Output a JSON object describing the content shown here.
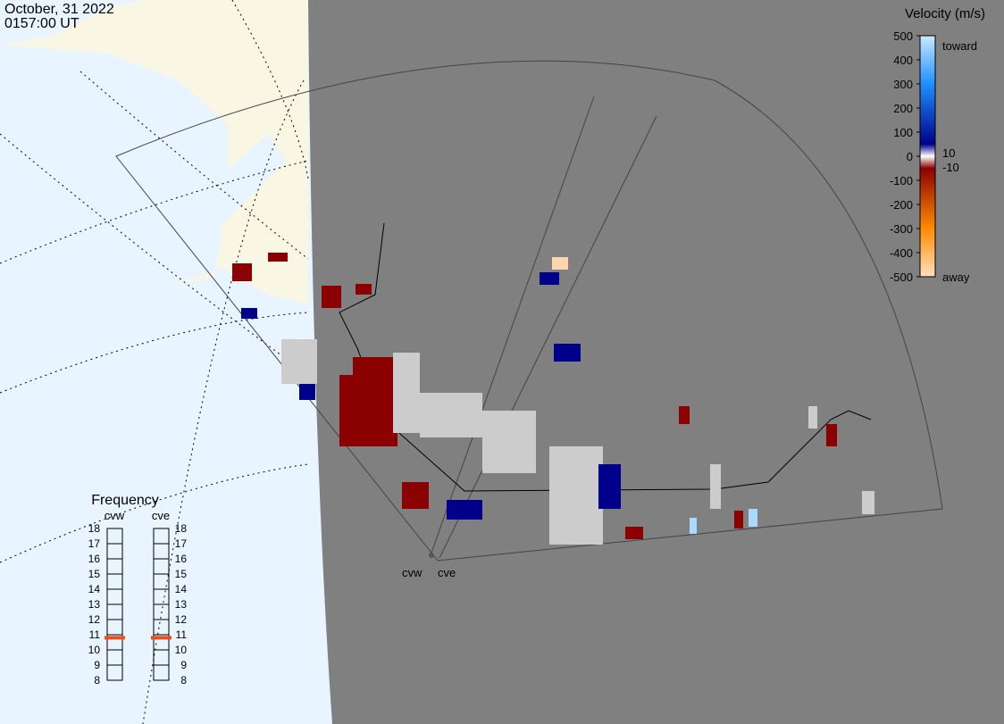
{
  "header": {
    "date": "October, 31 2022",
    "time": "0157:00 UT"
  },
  "velocity_scale": {
    "title": "Velocity (m/s)",
    "ticks": [
      500,
      400,
      300,
      200,
      100,
      0,
      -100,
      -200,
      -300,
      -400,
      -500
    ],
    "inner_ticks": [
      10,
      -10
    ],
    "toward": "toward",
    "away": "away"
  },
  "frequency": {
    "title": "Frequency",
    "ticks": [
      18,
      17,
      16,
      15,
      14,
      13,
      12,
      11,
      10,
      9,
      8
    ],
    "radars": [
      {
        "name": "cvw",
        "value": 10.8
      },
      {
        "name": "cve",
        "value": 10.8
      }
    ]
  },
  "radar_sites": [
    "cvw",
    "cve"
  ]
}
